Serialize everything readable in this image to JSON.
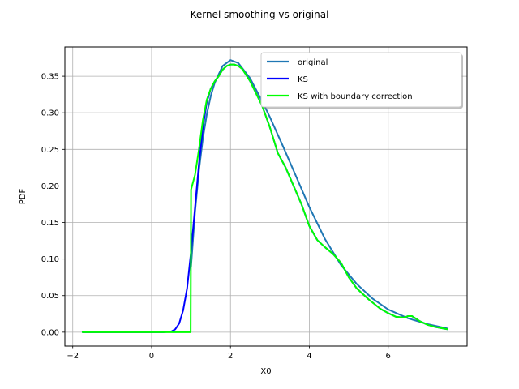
{
  "chart_data": {
    "type": "line",
    "title": "Kernel smoothing vs original",
    "xlabel": "X0",
    "ylabel": "PDF",
    "xlim": [
      -2.2,
      8.0
    ],
    "ylim": [
      -0.019,
      0.39
    ],
    "xticks": [
      -2,
      0,
      2,
      4,
      6
    ],
    "xtick_labels": [
      "−2",
      "0",
      "2",
      "4",
      "6"
    ],
    "yticks": [
      0.0,
      0.05,
      0.1,
      0.15,
      0.2,
      0.25,
      0.3,
      0.35
    ],
    "ytick_labels": [
      "0.00",
      "0.05",
      "0.10",
      "0.15",
      "0.20",
      "0.25",
      "0.30",
      "0.35"
    ],
    "grid": true,
    "legend_position": "upper right",
    "series": [
      {
        "name": "original",
        "color": "#1f77b4",
        "x": [
          1.0,
          1.1,
          1.2,
          1.3,
          1.4,
          1.5,
          1.6,
          1.8,
          2.0,
          2.2,
          2.5,
          2.8,
          3.0,
          3.3,
          3.6,
          4.0,
          4.4,
          4.8,
          5.2,
          5.6,
          6.0,
          6.5,
          7.0,
          7.5
        ],
        "y": [
          0.09,
          0.164,
          0.221,
          0.265,
          0.298,
          0.323,
          0.341,
          0.364,
          0.372,
          0.368,
          0.347,
          0.316,
          0.294,
          0.258,
          0.221,
          0.171,
          0.127,
          0.092,
          0.066,
          0.046,
          0.031,
          0.019,
          0.011,
          0.005
        ]
      },
      {
        "name": "KS",
        "color": "#0000ff",
        "x": [
          -1.75,
          0.3,
          0.5,
          0.6,
          0.7,
          0.8,
          0.9,
          1.0,
          1.1,
          1.2,
          1.3,
          1.4,
          1.5,
          1.6,
          1.7,
          1.8,
          1.9,
          2.0,
          2.1,
          2.2,
          2.3,
          2.5,
          2.8,
          3.0,
          3.2,
          3.4,
          3.6,
          3.8,
          4.0,
          4.2,
          4.4,
          4.6,
          4.8,
          5.0,
          5.2,
          5.5,
          5.8,
          6.0,
          6.2,
          6.4,
          6.5,
          6.6,
          6.8,
          7.0,
          7.2,
          7.5
        ],
        "y": [
          0.0,
          0.0,
          0.001,
          0.004,
          0.012,
          0.03,
          0.06,
          0.11,
          0.17,
          0.23,
          0.28,
          0.315,
          0.333,
          0.343,
          0.35,
          0.359,
          0.364,
          0.366,
          0.366,
          0.364,
          0.36,
          0.343,
          0.31,
          0.28,
          0.245,
          0.225,
          0.2,
          0.175,
          0.145,
          0.126,
          0.116,
          0.107,
          0.095,
          0.075,
          0.06,
          0.045,
          0.032,
          0.026,
          0.021,
          0.02,
          0.022,
          0.022,
          0.015,
          0.01,
          0.007,
          0.004
        ]
      },
      {
        "name": "KS with boundary correction",
        "color": "#00ff00",
        "x": [
          -1.75,
          0.99,
          1.0,
          1.05,
          1.1,
          1.2,
          1.3,
          1.4,
          1.5,
          1.6,
          1.7,
          1.8,
          1.9,
          2.0,
          2.1,
          2.2,
          2.3,
          2.5,
          2.8,
          3.0,
          3.2,
          3.4,
          3.6,
          3.8,
          4.0,
          4.2,
          4.4,
          4.6,
          4.8,
          5.0,
          5.2,
          5.5,
          5.8,
          6.0,
          6.2,
          6.4,
          6.5,
          6.6,
          6.8,
          7.0,
          7.2,
          7.5
        ],
        "y": [
          0.0,
          0.0,
          0.195,
          0.205,
          0.215,
          0.25,
          0.29,
          0.318,
          0.333,
          0.343,
          0.35,
          0.359,
          0.364,
          0.366,
          0.366,
          0.364,
          0.36,
          0.343,
          0.31,
          0.28,
          0.245,
          0.225,
          0.2,
          0.175,
          0.145,
          0.126,
          0.116,
          0.107,
          0.095,
          0.075,
          0.06,
          0.045,
          0.032,
          0.026,
          0.021,
          0.02,
          0.022,
          0.022,
          0.015,
          0.01,
          0.007,
          0.004
        ]
      }
    ]
  }
}
